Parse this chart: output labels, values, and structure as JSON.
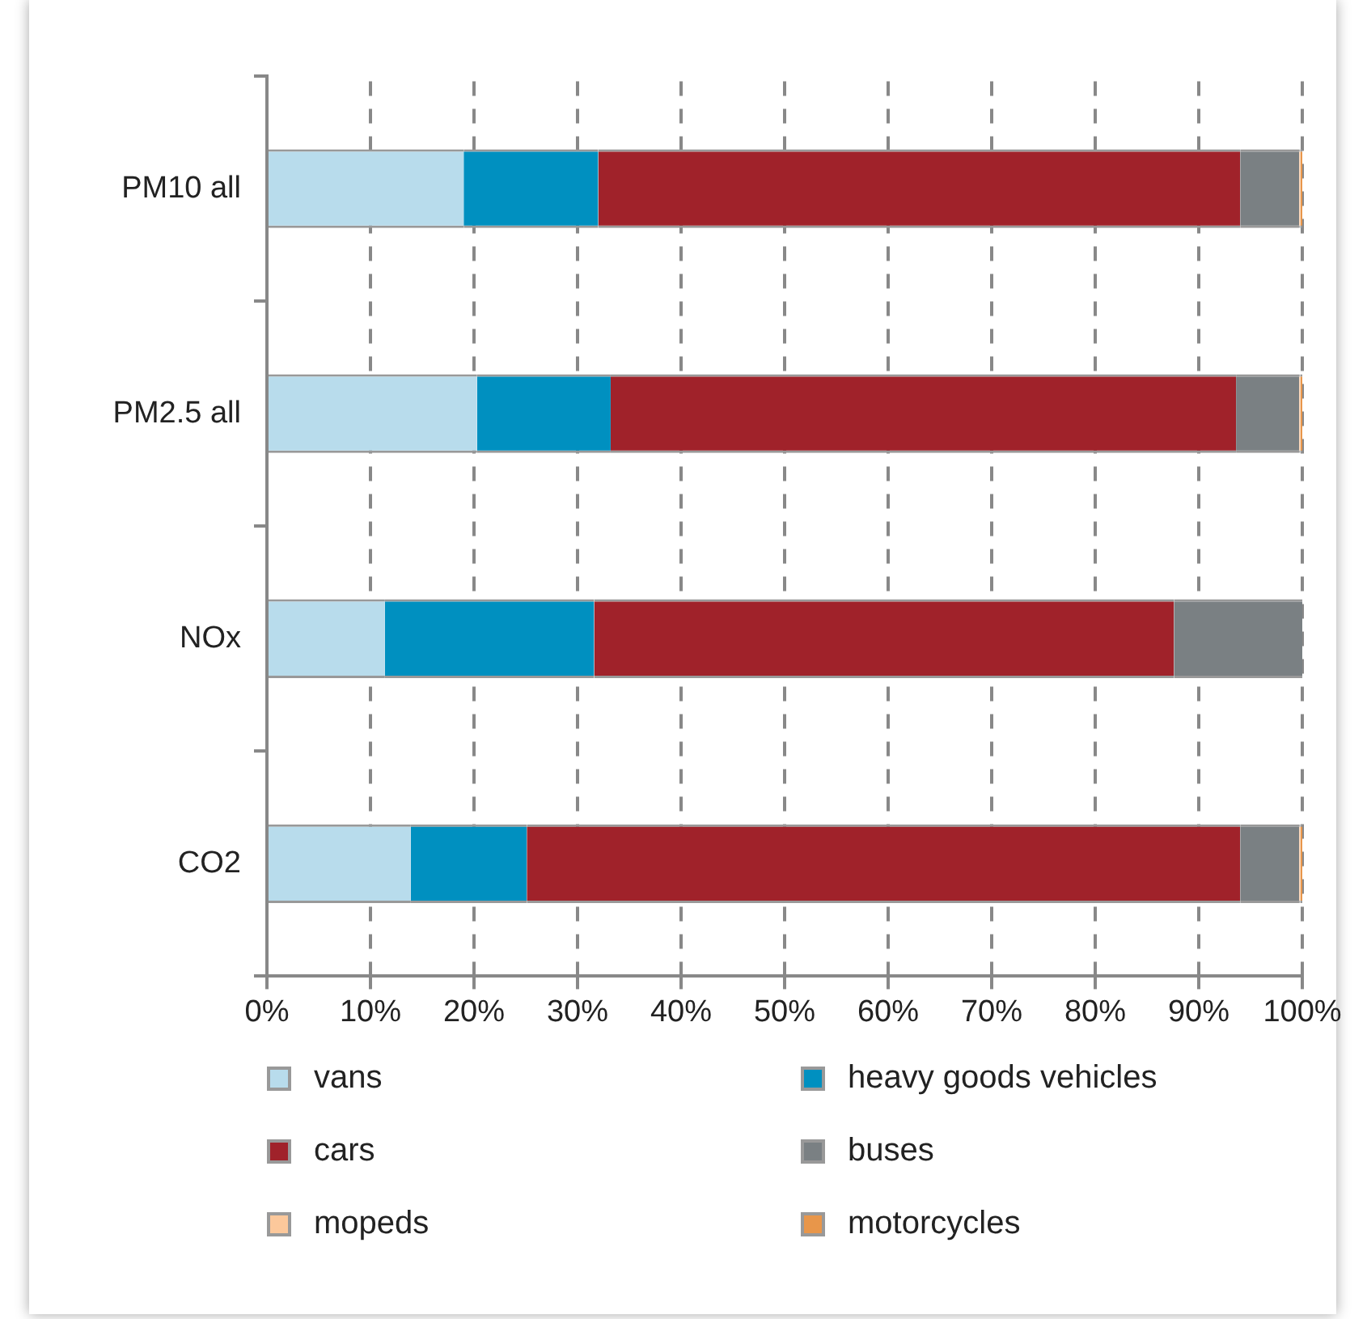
{
  "chart_data": {
    "type": "bar",
    "orientation": "horizontal",
    "stacked": true,
    "categories": [
      "PM10 all",
      "PM2.5 all",
      "NOx",
      "CO2"
    ],
    "series": [
      {
        "name": "vans",
        "color": "#b8dcec",
        "values": [
          19.0,
          20.3,
          11.4,
          13.9
        ]
      },
      {
        "name": "heavy goods vehicles",
        "color": "#0090c0",
        "values": [
          13.0,
          12.9,
          20.2,
          11.2
        ]
      },
      {
        "name": "cars",
        "color": "#a0222a",
        "values": [
          62.0,
          60.4,
          56.0,
          68.9
        ]
      },
      {
        "name": "buses",
        "color": "#7a8083",
        "values": [
          5.7,
          6.1,
          12.4,
          5.7
        ]
      },
      {
        "name": "mopeds",
        "color": "#fcc89b",
        "values": [
          0.1,
          0.1,
          0,
          0.1
        ]
      },
      {
        "name": "motorcycles",
        "color": "#e8964a",
        "values": [
          0.2,
          0.2,
          0,
          0.2
        ]
      }
    ],
    "xlim": [
      0,
      100
    ],
    "xticks": [
      {
        "value": 0,
        "label": "0%"
      },
      {
        "value": 10,
        "label": "10%"
      },
      {
        "value": 20,
        "label": "20%"
      },
      {
        "value": 30,
        "label": "30%"
      },
      {
        "value": 40,
        "label": "40%"
      },
      {
        "value": 50,
        "label": "50%"
      },
      {
        "value": 60,
        "label": "60%"
      },
      {
        "value": 70,
        "label": "70%"
      },
      {
        "value": 80,
        "label": "80%"
      },
      {
        "value": 90,
        "label": "90%"
      },
      {
        "value": 100,
        "label": "100%"
      }
    ],
    "grid": "x",
    "legend": "bottom"
  }
}
